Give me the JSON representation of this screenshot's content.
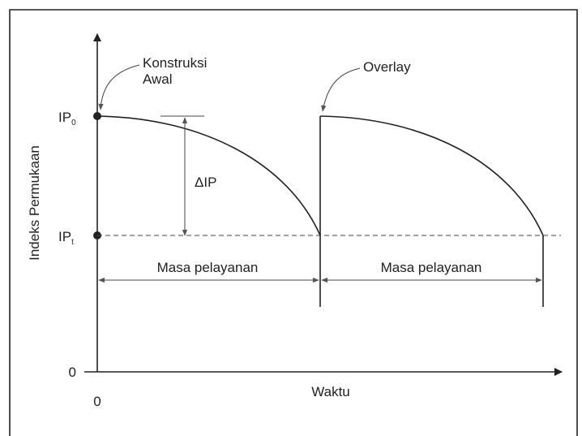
{
  "diagram": {
    "y_axis_label": "Indeks Permukaan",
    "x_axis_label": "Waktu",
    "y_origin": "0",
    "x_origin": "0",
    "ip_initial": {
      "text": "IP",
      "sub": "0"
    },
    "ip_terminal": {
      "text": "IP",
      "sub": "t"
    },
    "delta": "ΔIP",
    "annotations": [
      {
        "lines": [
          "Konstruksi",
          "Awal"
        ]
      },
      {
        "lines": [
          "Overlay"
        ]
      }
    ],
    "periods": [
      "Masa pelayanan",
      "Masa pelayanan"
    ]
  }
}
